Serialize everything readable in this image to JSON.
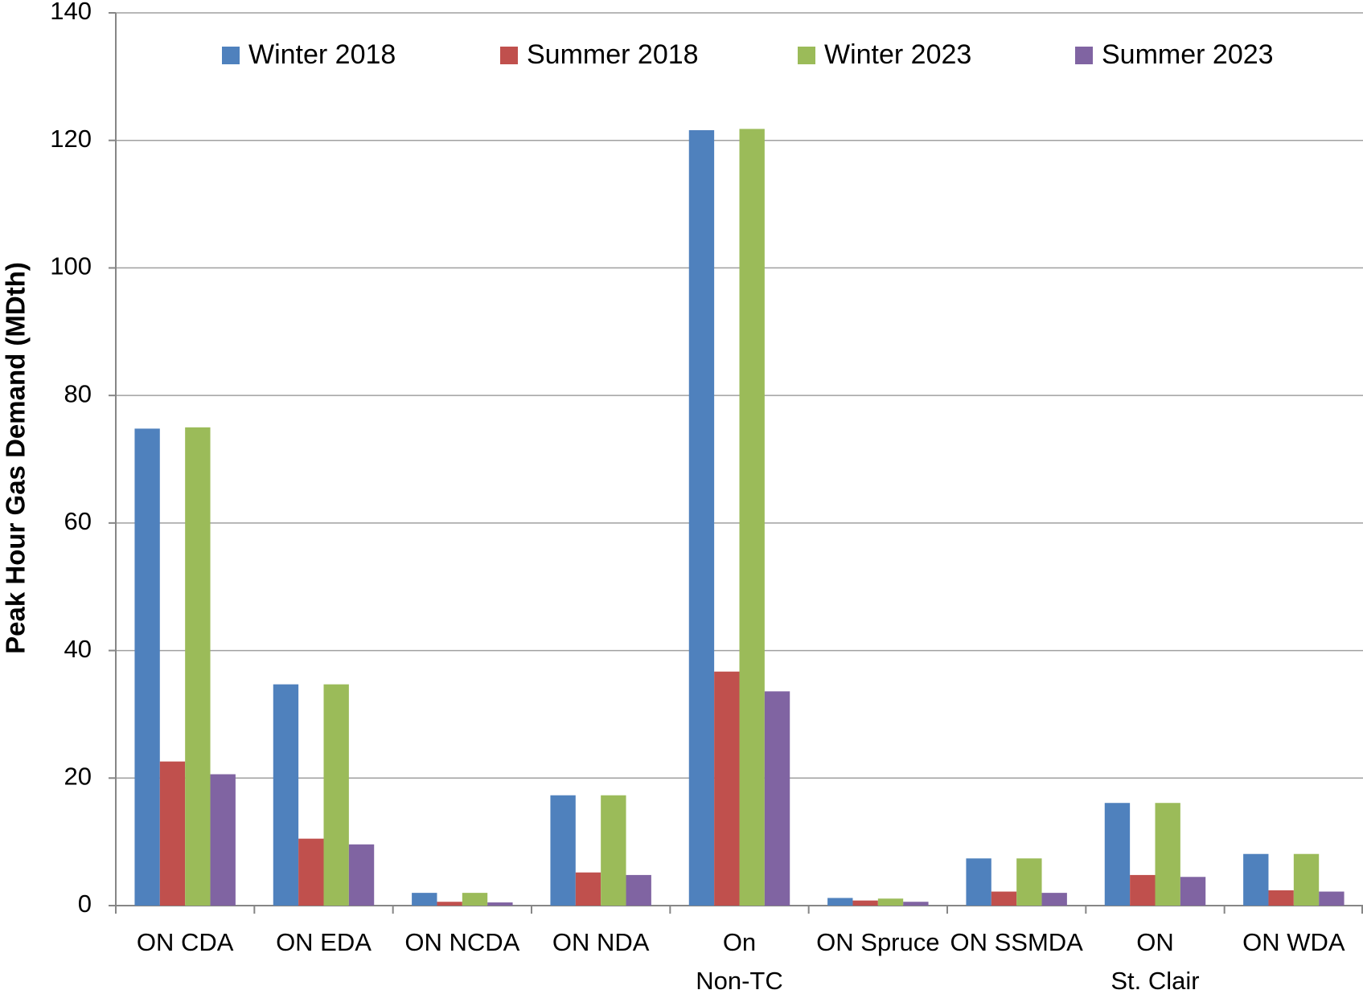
{
  "chart_data": {
    "type": "bar",
    "y_axis_label": "Peak Hour Gas Demand (MDth)",
    "categories": [
      [
        "ON CDA"
      ],
      [
        "ON EDA"
      ],
      [
        "ON NCDA"
      ],
      [
        "ON NDA"
      ],
      [
        "On",
        "Non-TC"
      ],
      [
        "ON Spruce"
      ],
      [
        "ON SSMDA"
      ],
      [
        "ON",
        "St. Clair"
      ],
      [
        "ON WDA"
      ]
    ],
    "series": [
      {
        "name": "Winter 2018",
        "color": "#4f81bd",
        "values": [
          74.8,
          34.7,
          2.0,
          17.3,
          121.6,
          1.2,
          7.4,
          16.1,
          8.1
        ]
      },
      {
        "name": "Summer 2018",
        "color": "#c0504d",
        "values": [
          22.6,
          10.5,
          0.6,
          5.2,
          36.7,
          0.8,
          2.2,
          4.8,
          2.4
        ]
      },
      {
        "name": "Winter 2023",
        "color": "#9bbb59",
        "values": [
          75.0,
          34.7,
          2.0,
          17.3,
          121.8,
          1.1,
          7.4,
          16.1,
          8.1
        ]
      },
      {
        "name": "Summer 2023",
        "color": "#8064a2",
        "values": [
          20.6,
          9.6,
          0.5,
          4.8,
          33.6,
          0.6,
          2.0,
          4.5,
          2.2
        ]
      }
    ],
    "ylim": [
      0,
      140
    ],
    "yticks": [
      0,
      20,
      40,
      60,
      80,
      100,
      120,
      140
    ],
    "grid": true,
    "legend": "top"
  }
}
